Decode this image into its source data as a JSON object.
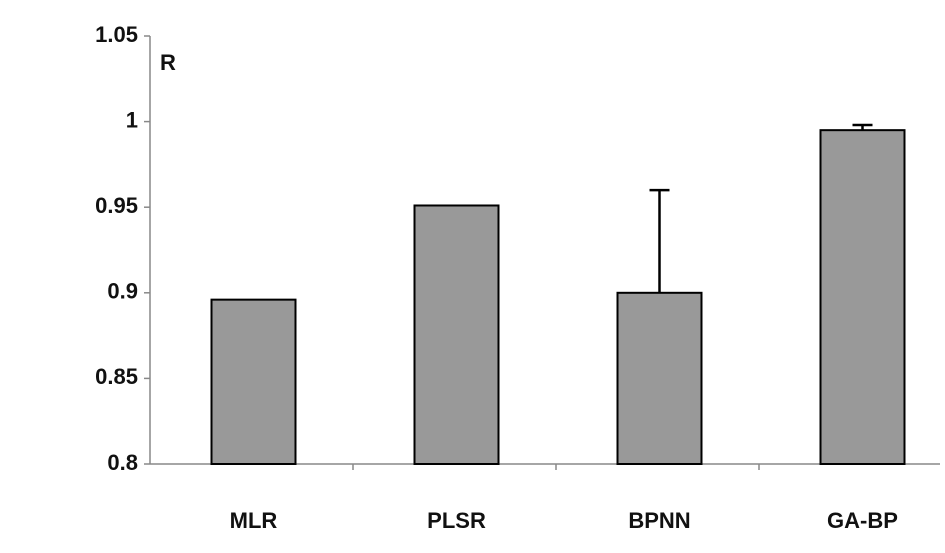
{
  "chart_data": {
    "type": "bar",
    "y_label": "R",
    "categories": [
      "MLR",
      "PLSR",
      "BPNN",
      "GA-BP"
    ],
    "values": [
      0.896,
      0.951,
      0.9,
      0.995
    ],
    "errors": [
      null,
      null,
      0.06,
      0.003
    ],
    "color": "#999999",
    "ylim": [
      0.8,
      1.05
    ],
    "yticks": [
      0.8,
      0.85,
      0.9,
      0.95,
      1,
      1.05
    ],
    "grid": false
  }
}
